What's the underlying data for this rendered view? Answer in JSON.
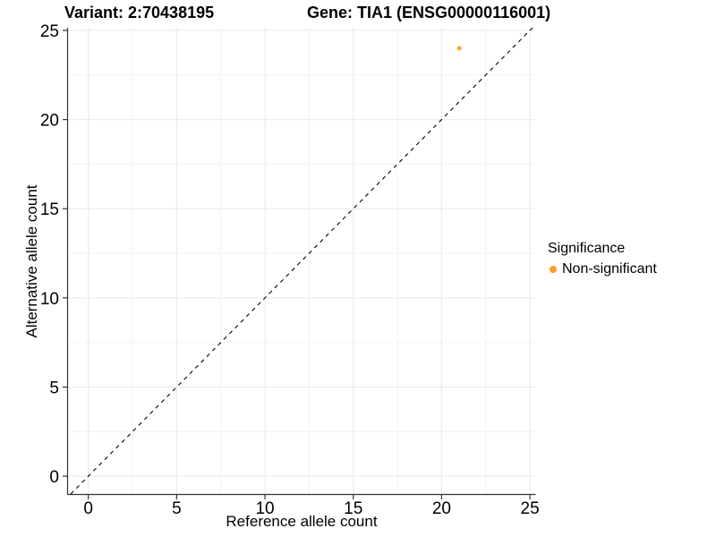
{
  "chart_data": {
    "type": "scatter",
    "title_variant": "Variant: 2:70438195",
    "title_gene": "Gene: TIA1 (ENSG00000116001)",
    "xlabel": "Reference allele count",
    "ylabel": "Alternative allele count",
    "x_ticks": [
      0,
      5,
      10,
      15,
      20,
      25
    ],
    "y_ticks": [
      0,
      5,
      10,
      15,
      20,
      25
    ],
    "minor_tick_step": 2.5,
    "xlim": [
      -1.15,
      25.3
    ],
    "ylim": [
      -1.0,
      25.15
    ],
    "grid": true,
    "points": [
      {
        "x": 21,
        "y": 24,
        "series": "Non-significant"
      }
    ],
    "identity_line": {
      "slope": 1,
      "intercept": 0,
      "style": "dashed",
      "color": "#000000"
    },
    "legend": {
      "title": "Significance",
      "position": "right",
      "entries": [
        {
          "label": "Non-significant",
          "color": "#FCA121"
        }
      ]
    },
    "colors": {
      "point": "#F9A43C",
      "grid_major": "#E9E9E9",
      "grid_minor": "#F3F3F3",
      "axis_line": "#333333",
      "tick_mark": "#333333",
      "text": "#000000",
      "background": "#FFFFFF"
    }
  }
}
